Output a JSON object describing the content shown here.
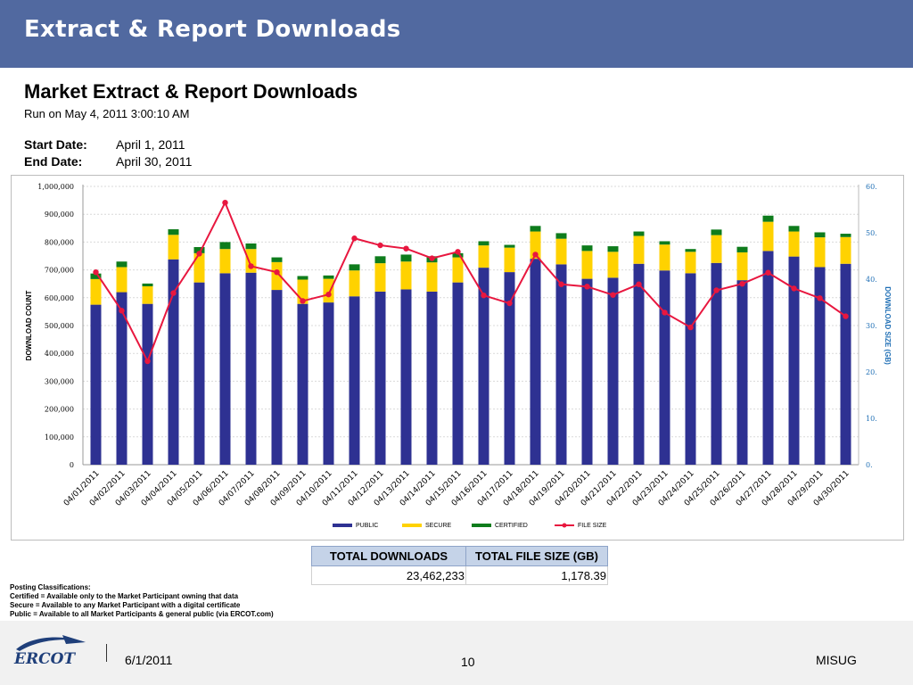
{
  "header": {
    "title": "Extract & Report Downloads"
  },
  "report": {
    "title": "Market Extract & Report Downloads",
    "run_on": "Run on May 4, 2011  3:00:10 AM",
    "start_label": "Start Date:",
    "start_value": "April 1, 2011",
    "end_label": "End Date:",
    "end_value": "April 30, 2011"
  },
  "chart_data": {
    "type": "bar",
    "stacked": true,
    "categories": [
      "04/01/2011",
      "04/02/2011",
      "04/03/2011",
      "04/04/2011",
      "04/05/2011",
      "04/06/2011",
      "04/07/2011",
      "04/08/2011",
      "04/09/2011",
      "04/10/2011",
      "04/11/2011",
      "04/12/2011",
      "04/13/2011",
      "04/14/2011",
      "04/15/2011",
      "04/16/2011",
      "04/17/2011",
      "04/18/2011",
      "04/19/2011",
      "04/20/2011",
      "04/21/2011",
      "04/22/2011",
      "04/23/2011",
      "04/24/2011",
      "04/25/2011",
      "04/26/2011",
      "04/27/2011",
      "04/28/2011",
      "04/29/2011",
      "04/30/2011"
    ],
    "series": [
      {
        "name": "PUBLIC",
        "color": "#2e3192",
        "values": [
          575000,
          620000,
          578000,
          738000,
          655000,
          688000,
          690000,
          628000,
          578000,
          583000,
          605000,
          622000,
          630000,
          622000,
          655000,
          708000,
          692000,
          740000,
          720000,
          668000,
          672000,
          722000,
          698000,
          688000,
          725000,
          663000,
          768000,
          748000,
          710000,
          722000
        ]
      },
      {
        "name": "SECURE",
        "color": "#ffd200",
        "values": [
          92000,
          90000,
          63000,
          88000,
          105000,
          87000,
          85000,
          100000,
          87000,
          85000,
          93000,
          102000,
          100000,
          105000,
          90000,
          80000,
          88000,
          98000,
          92000,
          100000,
          93000,
          100000,
          93000,
          77000,
          100000,
          100000,
          105000,
          90000,
          107000,
          96000
        ]
      },
      {
        "name": "CERTIFIED",
        "color": "#0e7c1c",
        "values": [
          20000,
          20000,
          10000,
          20000,
          22000,
          25000,
          20000,
          17000,
          13000,
          12000,
          22000,
          25000,
          25000,
          22000,
          15000,
          15000,
          10000,
          20000,
          20000,
          20000,
          20000,
          16000,
          12000,
          10000,
          20000,
          20000,
          22000,
          20000,
          18000,
          12000
        ]
      }
    ],
    "line": {
      "name": "FILE SIZE",
      "color": "#e8173f",
      "values": [
        41.5,
        33.2,
        22.3,
        37.0,
        45.5,
        56.5,
        42.8,
        41.5,
        35.3,
        36.7,
        48.8,
        47.3,
        46.6,
        44.5,
        45.9,
        36.5,
        34.8,
        45.3,
        38.9,
        38.4,
        36.6,
        38.9,
        32.8,
        29.6,
        37.6,
        39.0,
        41.4,
        38.0,
        35.9,
        32.0
      ]
    },
    "y_left": {
      "label": "DOWNLOAD COUNT",
      "lim": [
        0,
        1000000
      ],
      "ticks": [
        "0",
        "100,000",
        "200,000",
        "300,000",
        "400,000",
        "500,000",
        "600,000",
        "700,000",
        "800,000",
        "900,000",
        "1,000,000"
      ]
    },
    "y_right": {
      "label": "DOWNLOAD SIZE (GB)",
      "lim": [
        0,
        60
      ],
      "ticks": [
        "0.",
        "10.",
        "20.",
        "30.",
        "40.",
        "50.",
        "60."
      ]
    },
    "legend_position": "bottom",
    "grid": true
  },
  "totals": {
    "downloads_header": "TOTAL DOWNLOADS",
    "size_header": "TOTAL FILE SIZE (GB)",
    "downloads_value": "23,462,233",
    "size_value": "1,178.39"
  },
  "notes": {
    "heading": "Posting Classifications:",
    "line1": "Certified = Available only to the Market Participant owning that data",
    "line2": "Secure = Available to any Market Participant with a digital certificate",
    "line3": "Public = Available to all Market Participants & general public (via ERCOT.com)"
  },
  "footer": {
    "logo_text": "ERCOT",
    "date": "6/1/2011",
    "page": "10",
    "right": "MISUG"
  }
}
